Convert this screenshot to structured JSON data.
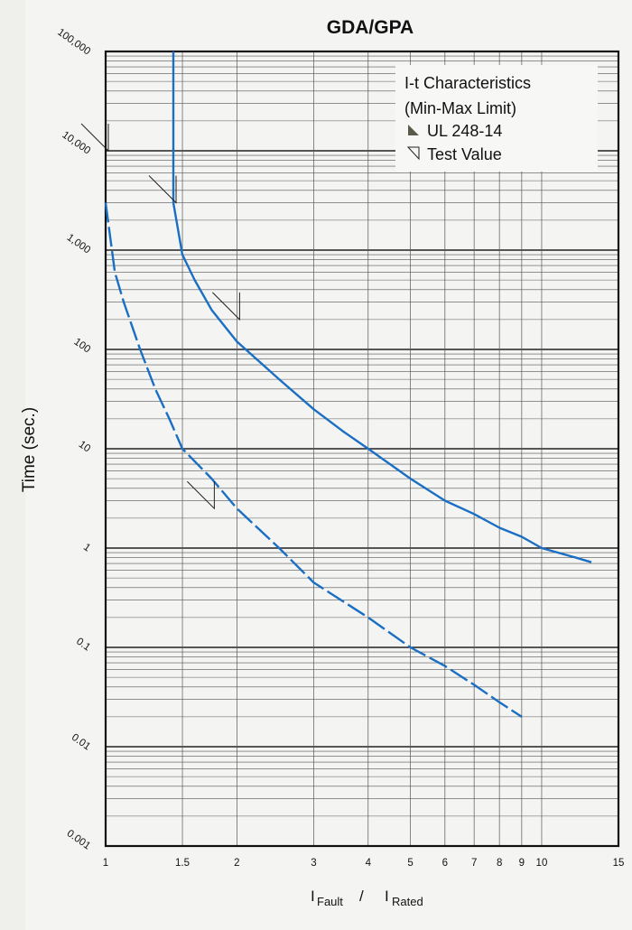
{
  "chart_data": {
    "type": "line",
    "title": "GDA/GPA",
    "xlabel": {
      "numerator": "I",
      "numerator_sub": "Fault",
      "slash": "/",
      "denominator": "I",
      "denominator_sub": "Rated"
    },
    "ylabel": "Time (sec.)",
    "x_scale": "log",
    "y_scale": "log",
    "xlim": [
      1,
      15
    ],
    "ylim": [
      0.001,
      100000
    ],
    "x_ticks": [
      {
        "value": 1,
        "label": "1"
      },
      {
        "value": 1.5,
        "label": "1.5"
      },
      {
        "value": 2,
        "label": "2"
      },
      {
        "value": 3,
        "label": "3"
      },
      {
        "value": 4,
        "label": "4"
      },
      {
        "value": 5,
        "label": "5"
      },
      {
        "value": 6,
        "label": "6"
      },
      {
        "value": 7,
        "label": "7"
      },
      {
        "value": 8,
        "label": "8"
      },
      {
        "value": 9,
        "label": "9"
      },
      {
        "value": 10,
        "label": "10"
      },
      {
        "value": 15,
        "label": "15"
      }
    ],
    "y_ticks": [
      {
        "value": 100000,
        "label": "100,000"
      },
      {
        "value": 10000,
        "label": "10,000"
      },
      {
        "value": 1000,
        "label": "1,000"
      },
      {
        "value": 100,
        "label": "100"
      },
      {
        "value": 10,
        "label": "10"
      },
      {
        "value": 1,
        "label": "1"
      },
      {
        "value": 0.1,
        "label": "0.1"
      },
      {
        "value": 0.01,
        "label": "0.01"
      },
      {
        "value": 0.001,
        "label": "0.001"
      }
    ],
    "grid": true,
    "legend": {
      "placement": "top-right",
      "title_line1": "I-t Characteristics",
      "title_line2": "(Min-Max Limit)",
      "items": [
        {
          "label": "UL 248-14",
          "marker": "filled-triangle"
        },
        {
          "label": "Test Value",
          "marker": "open-triangle"
        }
      ]
    },
    "series": [
      {
        "name": "Max",
        "color": "#1a6fc4",
        "points": [
          [
            1.43,
            100000
          ],
          [
            1.43,
            10000
          ],
          [
            1.43,
            3000
          ],
          [
            1.5,
            900
          ],
          [
            1.6,
            500
          ],
          [
            1.75,
            250
          ],
          [
            2,
            120
          ],
          [
            2.5,
            50
          ],
          [
            3,
            25
          ],
          [
            3.5,
            15
          ],
          [
            4,
            10
          ],
          [
            5,
            5
          ],
          [
            6,
            3
          ],
          [
            7,
            2.2
          ],
          [
            8,
            1.6
          ],
          [
            9,
            1.3
          ],
          [
            10,
            1.0
          ],
          [
            12,
            0.8
          ],
          [
            13,
            0.72
          ]
        ]
      },
      {
        "name": "Min",
        "color": "#1a6fc4",
        "points": [
          [
            1.0,
            3000
          ],
          [
            1.05,
            600
          ],
          [
            1.1,
            300
          ],
          [
            1.2,
            100
          ],
          [
            1.3,
            40
          ],
          [
            1.4,
            20
          ],
          [
            1.5,
            10
          ],
          [
            1.75,
            5
          ],
          [
            2,
            2.5
          ],
          [
            2.5,
            1.0
          ],
          [
            3,
            0.45
          ],
          [
            4,
            0.2
          ],
          [
            5,
            0.1
          ],
          [
            6,
            0.065
          ],
          [
            7,
            0.042
          ],
          [
            8,
            0.028
          ],
          [
            9,
            0.02
          ]
        ]
      }
    ],
    "test_values": [
      {
        "x": 1.0,
        "y": 10000
      },
      {
        "x": 1.43,
        "y": 3000
      },
      {
        "x": 2.0,
        "y": 200
      },
      {
        "x": 1.75,
        "y": 2.5
      }
    ]
  }
}
